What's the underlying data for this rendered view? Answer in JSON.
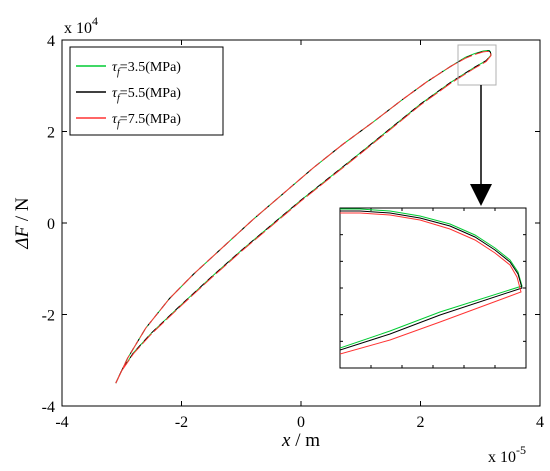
{
  "chart_data": {
    "type": "line",
    "xlabel_var": "x",
    "xlabel_unit": " / m",
    "ylabel_var": "ΔF",
    "ylabel_unit": " / N",
    "x_multiplier_base": "x 10",
    "x_multiplier_exp": "-5",
    "y_multiplier_base": "x 10",
    "y_multiplier_exp": "4",
    "xlim": [
      -4,
      4
    ],
    "ylim": [
      -4,
      4
    ],
    "xticks": [
      -4,
      -2,
      0,
      2,
      4
    ],
    "yticks": [
      -4,
      -2,
      0,
      2,
      4
    ],
    "grid": false,
    "legend_position": "top-left",
    "inset": {
      "description": "magnified view of the loop tip",
      "xlim": [
        2.65,
        3.8
      ],
      "ylim": [
        3.47,
        3.8
      ]
    },
    "series": [
      {
        "name_pre": "τ",
        "name_sub": "f",
        "name_post": "=3.5(MPa)",
        "color": "#00cc33",
        "upper": {
          "x": [
            -3.1,
            -2.9,
            -2.6,
            -2.2,
            -1.8,
            -1.3,
            -0.8,
            -0.3,
            0.2,
            0.7,
            1.2,
            1.7,
            2.1,
            2.5,
            2.75,
            2.9,
            3.05,
            3.12,
            3.15,
            3.17,
            3.18
          ],
          "y": [
            -3.5,
            -2.95,
            -2.3,
            -1.65,
            -1.12,
            -0.52,
            0.08,
            0.64,
            1.2,
            1.72,
            2.2,
            2.7,
            3.08,
            3.42,
            3.62,
            3.7,
            3.76,
            3.77,
            3.77,
            3.74,
            3.67
          ]
        },
        "lower": {
          "x": [
            3.18,
            3.1,
            2.9,
            2.5,
            2.0,
            1.5,
            1.0,
            0.5,
            0.0,
            -0.5,
            -1.0,
            -1.5,
            -2.0,
            -2.5,
            -2.8,
            -3.0,
            -3.1
          ],
          "y": [
            3.67,
            3.55,
            3.4,
            3.07,
            2.6,
            2.07,
            1.54,
            1.02,
            0.5,
            -0.05,
            -0.6,
            -1.18,
            -1.78,
            -2.4,
            -2.83,
            -3.22,
            -3.5
          ]
        }
      },
      {
        "name_pre": "τ",
        "name_sub": "f",
        "name_post": "=5.5(MPa)",
        "color": "#000000",
        "upper": {
          "x": [
            -3.1,
            -2.9,
            -2.6,
            -2.2,
            -1.8,
            -1.3,
            -0.8,
            -0.3,
            0.2,
            0.7,
            1.2,
            1.7,
            2.1,
            2.5,
            2.75,
            2.9,
            3.05,
            3.12,
            3.15,
            3.17,
            3.18
          ],
          "y": [
            -3.5,
            -2.95,
            -2.3,
            -1.65,
            -1.12,
            -0.52,
            0.08,
            0.64,
            1.2,
            1.72,
            2.2,
            2.7,
            3.08,
            3.42,
            3.61,
            3.69,
            3.75,
            3.76,
            3.76,
            3.73,
            3.67
          ]
        },
        "lower": {
          "x": [
            3.18,
            3.1,
            2.9,
            2.5,
            2.0,
            1.5,
            1.0,
            0.5,
            0.0,
            -0.5,
            -1.0,
            -1.5,
            -2.0,
            -2.5,
            -2.8,
            -3.0,
            -3.1
          ],
          "y": [
            3.67,
            3.55,
            3.4,
            3.07,
            2.6,
            2.07,
            1.54,
            1.02,
            0.5,
            -0.05,
            -0.6,
            -1.18,
            -1.78,
            -2.4,
            -2.83,
            -3.22,
            -3.5
          ]
        }
      },
      {
        "name_pre": "τ",
        "name_sub": "f",
        "name_post": "=7.5(MPa)",
        "color": "#ff3333",
        "upper": {
          "x": [
            -3.1,
            -2.9,
            -2.6,
            -2.2,
            -1.8,
            -1.3,
            -0.8,
            -0.3,
            0.2,
            0.7,
            1.2,
            1.7,
            2.1,
            2.5,
            2.75,
            2.9,
            3.05,
            3.12,
            3.15,
            3.17,
            3.18
          ],
          "y": [
            -3.5,
            -2.95,
            -2.3,
            -1.65,
            -1.12,
            -0.52,
            0.08,
            0.64,
            1.2,
            1.72,
            2.2,
            2.7,
            3.08,
            3.42,
            3.6,
            3.68,
            3.74,
            3.75,
            3.75,
            3.72,
            3.66
          ]
        },
        "lower": {
          "x": [
            3.18,
            3.1,
            2.9,
            2.5,
            2.0,
            1.5,
            1.0,
            0.5,
            0.0,
            -0.5,
            -1.0,
            -1.5,
            -2.0,
            -2.5,
            -2.8,
            -3.0,
            -3.1
          ],
          "y": [
            3.66,
            3.53,
            3.38,
            3.05,
            2.58,
            2.05,
            1.52,
            1.0,
            0.48,
            -0.07,
            -0.62,
            -1.2,
            -1.8,
            -2.42,
            -2.85,
            -3.23,
            -3.5
          ]
        }
      }
    ]
  }
}
